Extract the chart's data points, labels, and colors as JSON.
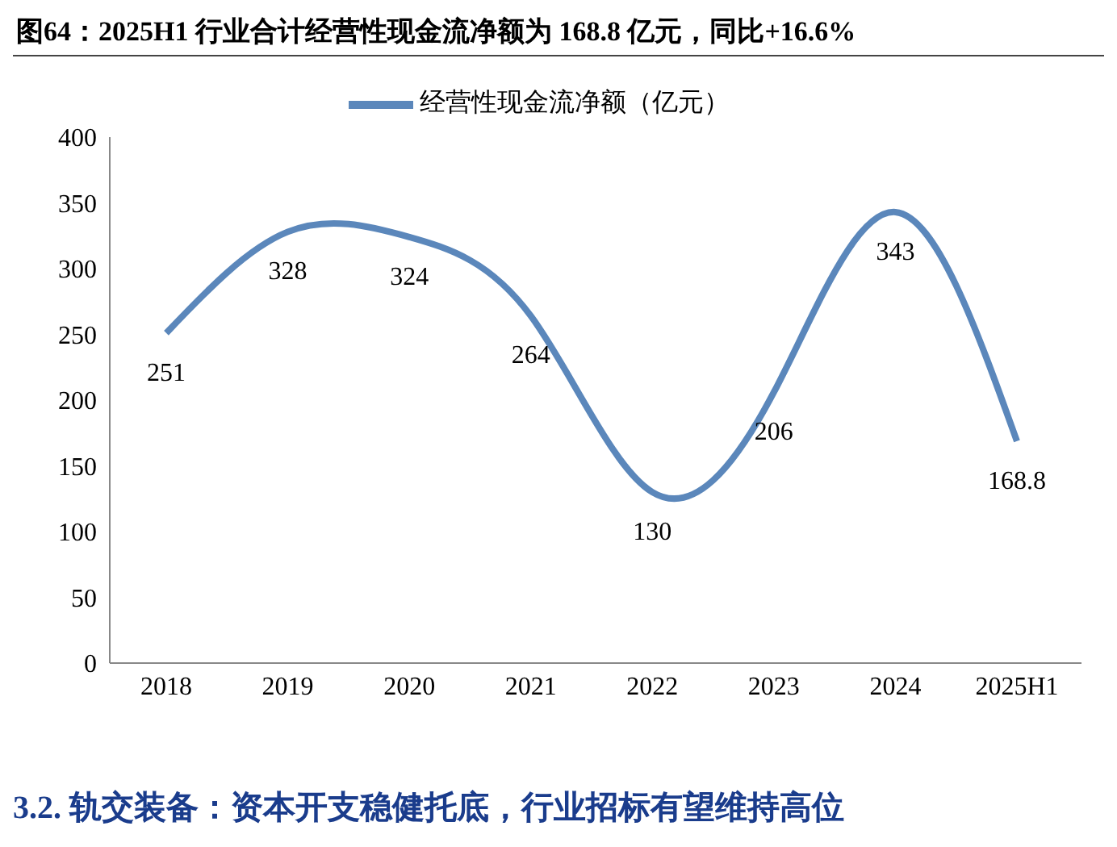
{
  "chart_data": {
    "type": "line",
    "title": "图64：2025H1 行业合计经营性现金流净额为 168.8 亿元，同比+16.6%",
    "categories": [
      "2018",
      "2019",
      "2020",
      "2021",
      "2022",
      "2023",
      "2024",
      "2025H1"
    ],
    "series": [
      {
        "name": "经营性现金流净额（亿元）",
        "color": "#5b87bb",
        "values": [
          251,
          328,
          324,
          264,
          130,
          206,
          343,
          168.8
        ]
      }
    ],
    "ylim": [
      0,
      400
    ],
    "yticks": [
      0,
      50,
      100,
      150,
      200,
      250,
      300,
      350,
      400
    ],
    "grid": false,
    "legend": "top",
    "marker": "none",
    "data_labels": true,
    "annotations": [
      "3.2.  轨交装备：资本开支稳健托底，行业招标有望维持高位"
    ]
  }
}
